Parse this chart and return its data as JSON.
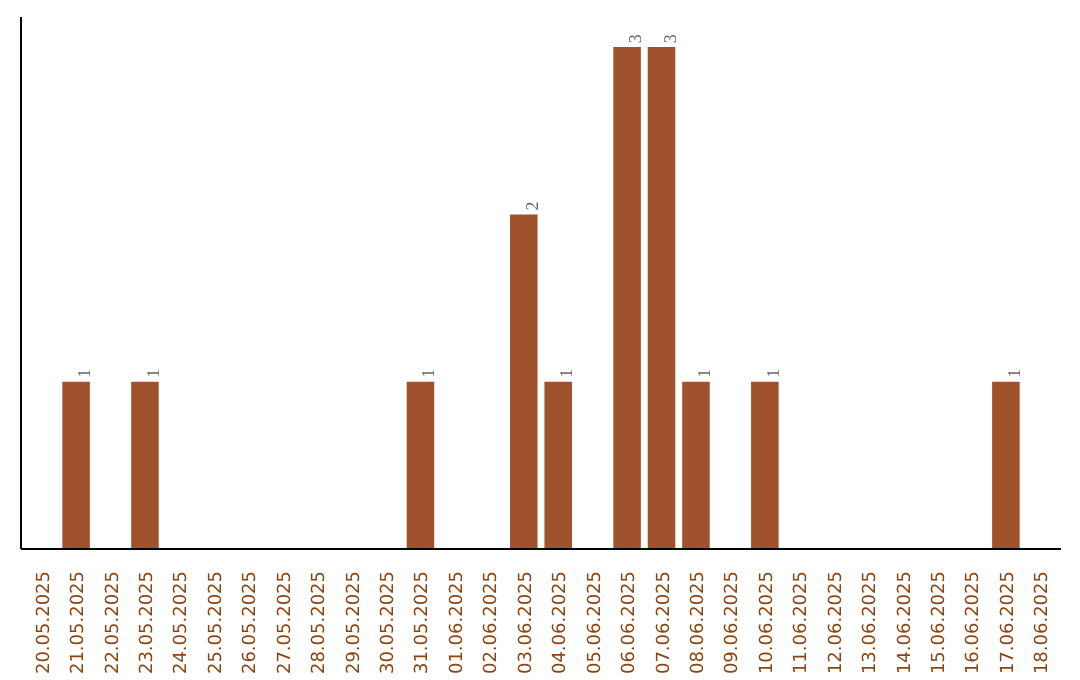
{
  "chart_data": {
    "type": "bar",
    "categories": [
      "20.05.2025",
      "21.05.2025",
      "22.05.2025",
      "23.05.2025",
      "24.05.2025",
      "25.05.2025",
      "26.05.2025",
      "27.05.2025",
      "28.05.2025",
      "29.05.2025",
      "30.05.2025",
      "31.05.2025",
      "01.06.2025",
      "02.06.2025",
      "03.06.2025",
      "04.06.2025",
      "05.06.2025",
      "06.06.2025",
      "07.06.2025",
      "08.06.2025",
      "09.06.2025",
      "10.06.2025",
      "11.06.2025",
      "12.06.2025",
      "13.06.2025",
      "14.06.2025",
      "15.06.2025",
      "16.06.2025",
      "17.06.2025",
      "18.06.2025"
    ],
    "values": [
      0,
      1,
      0,
      1,
      0,
      0,
      0,
      0,
      0,
      0,
      0,
      1,
      0,
      0,
      2,
      1,
      0,
      3,
      3,
      1,
      0,
      1,
      0,
      0,
      0,
      0,
      0,
      0,
      1,
      0
    ],
    "value_labels": [
      null,
      "1",
      null,
      "1",
      null,
      null,
      null,
      null,
      null,
      null,
      null,
      "1",
      null,
      null,
      "2",
      "1",
      null,
      "3",
      "3",
      "1",
      null,
      "1",
      null,
      null,
      null,
      null,
      null,
      null,
      "1",
      null
    ],
    "color": "#a0522d",
    "grid": false
  }
}
